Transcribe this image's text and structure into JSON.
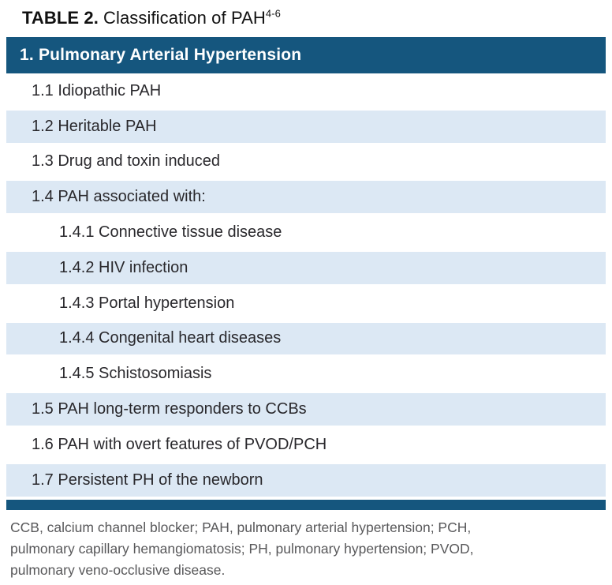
{
  "figure": {
    "title": {
      "label": "TABLE 2.",
      "text": "Classification of PAH",
      "superscript": "4-6"
    },
    "table": {
      "header": "1. Pulmonary Arterial Hypertension",
      "rows": [
        {
          "text": "1.1 Idiopathic PAH",
          "level": 1
        },
        {
          "text": "1.2 Heritable PAH",
          "level": 1
        },
        {
          "text": "1.3 Drug and toxin induced",
          "level": 1
        },
        {
          "text": "1.4 PAH associated with:",
          "level": 1
        },
        {
          "text": "1.4.1 Connective tissue disease",
          "level": 2
        },
        {
          "text": "1.4.2 HIV infection",
          "level": 2
        },
        {
          "text": "1.4.3 Portal hypertension",
          "level": 2
        },
        {
          "text": "1.4.4 Congenital heart diseases",
          "level": 2
        },
        {
          "text": "1.4.5 Schistosomiasis",
          "level": 2
        },
        {
          "text": "1.5 PAH long-term responders to CCBs",
          "level": 1
        },
        {
          "text": "1.6 PAH with overt features of PVOD/PCH",
          "level": 1
        },
        {
          "text": "1.7 Persistent PH of the newborn",
          "level": 1
        }
      ]
    },
    "footnote_lines": [
      "CCB, calcium channel blocker; PAH, pulmonary arterial hypertension; PCH,",
      "pulmonary capillary hemangiomatosis; PH, pulmonary hypertension; PVOD,",
      "pulmonary veno-occlusive disease."
    ],
    "colors": {
      "header_bg": "#15567E",
      "row_alt_bg": "#DCE8F4",
      "rule": "#15567E",
      "title_text": "#111111",
      "body_text": "#29282C",
      "footnote_text": "#58585A"
    }
  }
}
